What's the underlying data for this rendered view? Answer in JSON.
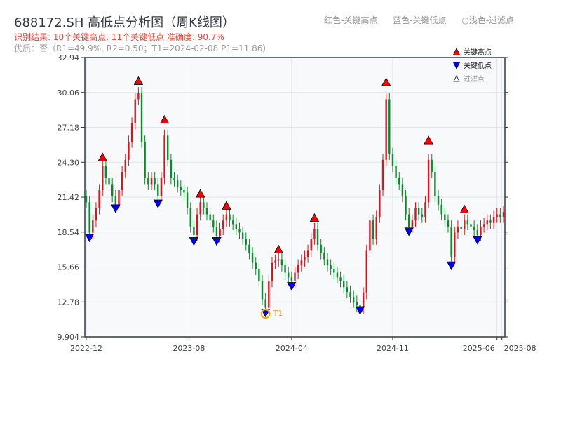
{
  "title": "688172.SH 高低点分析图（周K线图）",
  "summary": "识别结果: 10个关键高点, 11个关键低点  准确度: 90.7%",
  "quality": "优质：否（R1=49.9%, R2=0.50；T1=2024-02-08 P1=11.86）",
  "hints": [
    "红色-关键高点",
    "蓝色-关键低点",
    "○浅色-过滤点"
  ],
  "legend": [
    {
      "label": "关键高点",
      "color": "#ff0000",
      "marker": "triangle-up"
    },
    {
      "label": "关键低点",
      "color": "#0000ff",
      "marker": "triangle-down"
    },
    {
      "label": "过滤点",
      "color": "#ffffff",
      "marker": "triangle-up-outline"
    }
  ],
  "colors": {
    "up": "#e0111b",
    "down": "#0a8a2a",
    "t1": "#f5a623",
    "grid": "#e3e6ea",
    "plot_bg": "#f7f9fb"
  },
  "chart_data": {
    "type": "candlestick",
    "ylim": [
      9.904,
      32.94
    ],
    "yticks": [
      "9.904",
      "12.78",
      "15.66",
      "18.54",
      "21.42",
      "24.30",
      "27.18",
      "30.06",
      "32.94"
    ],
    "xticks": [
      {
        "label": "2022-12",
        "week": 0
      },
      {
        "label": "2023-08",
        "week": 31.5
      },
      {
        "label": "2024-04",
        "week": 63
      },
      {
        "label": "2024-11",
        "week": 94
      },
      {
        "label": "2025-06",
        "week": 126
      },
      {
        "label": "2025-08",
        "week": 127.5
      }
    ],
    "closes": [
      21.0,
      18.5,
      19.5,
      20.5,
      22,
      24,
      23,
      22.5,
      21.5,
      20.6,
      22,
      23.5,
      24.5,
      26,
      27.5,
      29.5,
      30,
      26,
      23,
      22.5,
      23,
      22.5,
      21.5,
      23,
      26.5,
      24.5,
      23,
      22.8,
      22.3,
      22,
      21.8,
      20.5,
      19,
      18.3,
      20,
      21,
      20.5,
      20,
      19.5,
      19,
      18.2,
      18.8,
      19.5,
      20,
      19.5,
      19.2,
      18.8,
      18.5,
      18,
      17.5,
      16.8,
      16,
      15.5,
      14.5,
      13,
      12.3,
      14.5,
      16,
      16.2,
      16.3,
      15.8,
      15.2,
      14.8,
      14.5,
      15.2,
      15.8,
      16.2,
      16.5,
      17,
      18,
      18.8,
      17.5,
      16.8,
      16.3,
      15.8,
      15.5,
      15.2,
      14.8,
      14.5,
      14,
      13.6,
      13.2,
      12.8,
      12.5,
      12.3,
      13.5,
      17,
      19.5,
      18,
      19.8,
      22,
      24.5,
      29.5,
      25,
      24,
      23,
      22.5,
      21.5,
      20,
      19,
      19.5,
      20.5,
      20,
      19.8,
      21,
      24.5,
      23.5,
      21.5,
      20.8,
      20,
      19.5,
      19,
      16.5,
      18.5,
      19,
      18.8,
      19.5,
      19.2,
      19,
      18.7,
      18.3,
      19,
      19.2,
      19.5,
      19.3,
      19.8,
      20,
      19.8,
      20.2
    ],
    "key_highs": [
      {
        "week": 5,
        "price": 24.3
      },
      {
        "week": 16,
        "price": 30.6
      },
      {
        "week": 24,
        "price": 27.4
      },
      {
        "week": 35,
        "price": 21.3
      },
      {
        "week": 43,
        "price": 20.3
      },
      {
        "week": 59,
        "price": 16.7
      },
      {
        "week": 70,
        "price": 19.3
      },
      {
        "week": 92,
        "price": 30.5
      },
      {
        "week": 105,
        "price": 25.7
      },
      {
        "week": 116,
        "price": 20.0
      }
    ],
    "key_lows": [
      {
        "week": 1,
        "price": 18.1
      },
      {
        "week": 9,
        "price": 20.5
      },
      {
        "week": 22,
        "price": 20.9
      },
      {
        "week": 33,
        "price": 17.8
      },
      {
        "week": 40,
        "price": 17.8
      },
      {
        "week": 55,
        "price": 11.9
      },
      {
        "week": 63,
        "price": 14.1
      },
      {
        "week": 84,
        "price": 12.1
      },
      {
        "week": 99,
        "price": 18.6
      },
      {
        "week": 112,
        "price": 15.8
      },
      {
        "week": 120,
        "price": 17.9
      }
    ],
    "t1": {
      "label": "T1",
      "week": 55,
      "price": 11.86
    }
  }
}
